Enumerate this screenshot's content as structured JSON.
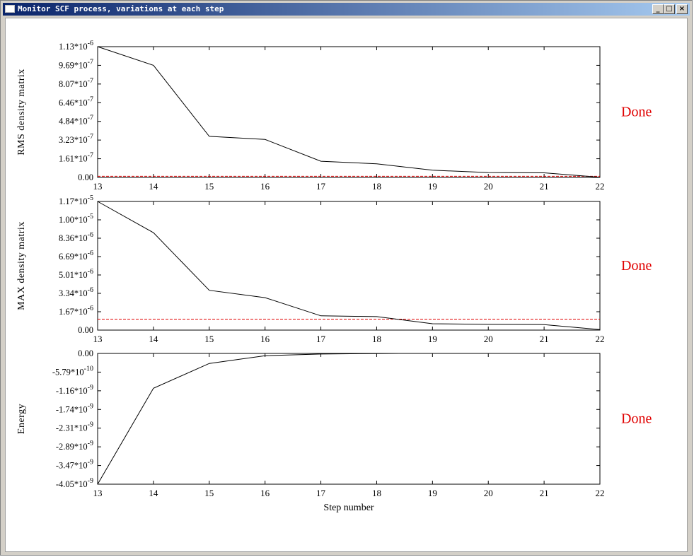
{
  "window": {
    "title": "Monitor SCF process, variations at each step",
    "controls": {
      "minimize": "_",
      "maximize": "□",
      "close": "×"
    }
  },
  "status_label": "Done",
  "chart_data": [
    {
      "type": "line",
      "ylabel": "RMS density matrix",
      "x": [
        13,
        14,
        15,
        16,
        17,
        18,
        19,
        20,
        21,
        22
      ],
      "values": [
        1.13e-06,
        9.69e-07,
        3.55e-07,
        3.28e-07,
        1.4e-07,
        1.18e-07,
        6.2e-08,
        4.2e-08,
        4e-08,
        2e-09
      ],
      "threshold": 1e-08,
      "xlim": [
        13,
        22
      ],
      "ylim": [
        0,
        1.13e-06
      ],
      "yticks": [
        "0.00",
        "1.61*10-7",
        "3.23*10-7",
        "4.84*10-7",
        "6.46*10-7",
        "8.07*10-7",
        "9.69*10-7",
        "1.13*10-6"
      ],
      "xticks": [
        "13",
        "14",
        "15",
        "16",
        "17",
        "18",
        "19",
        "20",
        "21",
        "22"
      ],
      "status": "Done"
    },
    {
      "type": "line",
      "ylabel": "MAX density matrix",
      "x": [
        13,
        14,
        15,
        16,
        17,
        18,
        19,
        20,
        21,
        22
      ],
      "values": [
        1.17e-05,
        8.86e-06,
        3.62e-06,
        2.95e-06,
        1.3e-06,
        1.23e-06,
        5.8e-07,
        5.2e-07,
        5e-07,
        5e-08
      ],
      "threshold": 1e-06,
      "xlim": [
        13,
        22
      ],
      "ylim": [
        0,
        1.17e-05
      ],
      "yticks": [
        "0.00",
        "1.67*10-6",
        "3.34*10-6",
        "5.01*10-6",
        "6.69*10-6",
        "8.36*10-6",
        "1.00*10-5",
        "1.17*10-5"
      ],
      "xticks": [
        "13",
        "14",
        "15",
        "16",
        "17",
        "18",
        "19",
        "20",
        "21",
        "22"
      ],
      "status": "Done"
    },
    {
      "type": "line",
      "ylabel": "Energy",
      "xlabel": "Step number",
      "x": [
        13,
        14,
        15,
        16,
        17,
        18,
        18.4
      ],
      "values": [
        -4.05e-09,
        -1.08e-09,
        -3.1e-10,
        -7e-11,
        -2e-11,
        -5e-12,
        -1e-12
      ],
      "xlim": [
        13,
        22
      ],
      "ylim": [
        -4.05e-09,
        0
      ],
      "yticks": [
        "-4.05*10-9",
        "-3.47*10-9",
        "-2.89*10-9",
        "-2.31*10-9",
        "-1.74*10-9",
        "-1.16*10-9",
        "-5.79*10-10",
        "0.00"
      ],
      "xticks": [
        "13",
        "14",
        "15",
        "16",
        "17",
        "18",
        "19",
        "20",
        "21",
        "22"
      ],
      "status": "Done"
    }
  ]
}
